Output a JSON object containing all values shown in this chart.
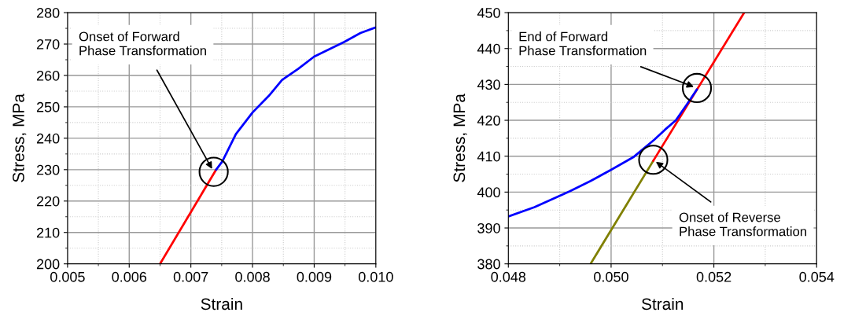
{
  "chart_data": [
    {
      "type": "line",
      "xlabel": "Strain",
      "ylabel": "Stress, MPa",
      "xlim": [
        0.005,
        0.01
      ],
      "ylim": [
        200,
        280
      ],
      "xticks": [
        {
          "value": 0.005,
          "label": "0.005"
        },
        {
          "value": 0.006,
          "label": "0.006"
        },
        {
          "value": 0.007,
          "label": "0.007"
        },
        {
          "value": 0.008,
          "label": "0.008"
        },
        {
          "value": 0.009,
          "label": "0.009"
        },
        {
          "value": 0.01,
          "label": "0.010"
        }
      ],
      "yticks": [
        200,
        210,
        220,
        230,
        240,
        250,
        260,
        270,
        280
      ],
      "grid": true,
      "legend": false,
      "series": [
        {
          "color": "#ff0000",
          "x": [
            0.0065,
            0.00741
          ],
          "values": [
            200,
            230
          ]
        },
        {
          "color": "#0000ff",
          "x": [
            0.00741,
            0.00751,
            0.00773,
            0.008,
            0.00826,
            0.00848,
            0.00874,
            0.009,
            0.00949,
            0.00975,
            0.01
          ],
          "values": [
            230,
            232.6,
            241.3,
            248.2,
            253.4,
            258.6,
            262.1,
            266,
            270.7,
            273.5,
            275.3
          ]
        }
      ],
      "annotations": [
        {
          "text": "Onset of Forward\nPhase Transformation",
          "x": 0.00737,
          "y": 229.3
        }
      ]
    },
    {
      "type": "line",
      "xlabel": "Strain",
      "ylabel": "Stress, MPa",
      "xlim": [
        0.048,
        0.054
      ],
      "ylim": [
        380,
        450
      ],
      "xticks": [
        {
          "value": 0.048,
          "label": "0.048"
        },
        {
          "value": 0.05,
          "label": "0.050"
        },
        {
          "value": 0.052,
          "label": "0.052"
        },
        {
          "value": 0.054,
          "label": "0.054"
        }
      ],
      "yticks": [
        380,
        390,
        400,
        410,
        420,
        430,
        440,
        450
      ],
      "grid": true,
      "legend": false,
      "series": [
        {
          "color": "#808000",
          "x": [
            0.0496,
            0.05082
          ],
          "values": [
            380,
            408.7
          ]
        },
        {
          "color": "#ff0000",
          "x": [
            0.05082,
            0.05259
          ],
          "values": [
            408.7,
            450
          ]
        },
        {
          "color": "#0000ff",
          "x": [
            0.048,
            0.04851,
            0.04919,
            0.0496,
            0.05,
            0.05043,
            0.05084,
            0.05105,
            0.05126,
            0.05146,
            0.05167
          ],
          "values": [
            393.2,
            395.8,
            400.2,
            403.1,
            406.2,
            409.7,
            414.6,
            417.4,
            420.0,
            424.1,
            428.6
          ]
        }
      ],
      "annotations": [
        {
          "text": "End of Forward\nPhase Transformation",
          "x": 0.05167,
          "y": 429
        },
        {
          "text": "Onset of Reverse\nPhase Transformation",
          "x": 0.05082,
          "y": 409
        }
      ]
    }
  ]
}
